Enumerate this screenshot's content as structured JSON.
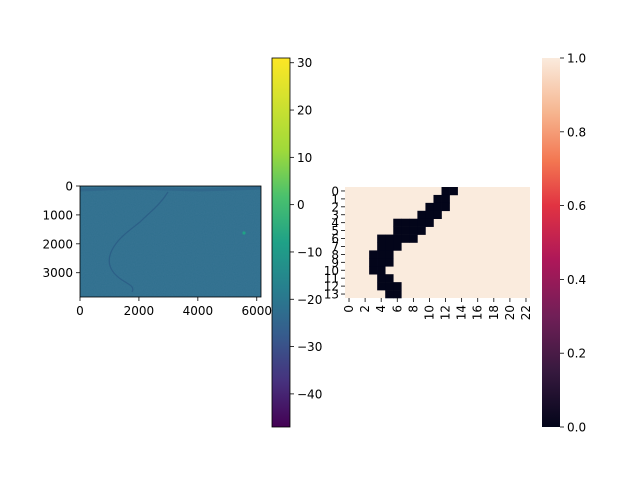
{
  "chart_data": [
    {
      "type": "heatmap",
      "title": "",
      "xlabel": "",
      "ylabel": "",
      "xlim": [
        0,
        6144
      ],
      "ylim": [
        3840,
        0
      ],
      "x_ticks": [
        "0",
        "2000",
        "4000",
        "6000"
      ],
      "y_ticks": [
        "0",
        "1000",
        "2000",
        "3000"
      ],
      "image_description_colors": {
        "background": "#2f6f8e",
        "river_dark": "#315c8a",
        "bright_spot": "#20a386"
      },
      "colorbar": {
        "colormap": "viridis",
        "range": [
          -47,
          31
        ],
        "ticks": [
          "30",
          "20",
          "10",
          "0",
          "−10",
          "−20",
          "−30",
          "−40"
        ]
      }
    },
    {
      "type": "heatmap",
      "title": "",
      "xlabel": "",
      "ylabel": "",
      "rows": 14,
      "cols": 23,
      "x_ticks": [
        "0",
        "2",
        "4",
        "6",
        "8",
        "10",
        "12",
        "14",
        "16",
        "18",
        "20",
        "22"
      ],
      "y_ticks": [
        "0",
        "1",
        "2",
        "3",
        "4",
        "5",
        "6",
        "7",
        "8",
        "9",
        "10",
        "11",
        "12",
        "13"
      ],
      "background_value": 1,
      "zero_cells": [
        [
          0,
          12
        ],
        [
          0,
          13
        ],
        [
          1,
          11
        ],
        [
          1,
          12
        ],
        [
          2,
          10
        ],
        [
          2,
          11
        ],
        [
          2,
          12
        ],
        [
          3,
          9
        ],
        [
          3,
          10
        ],
        [
          3,
          11
        ],
        [
          4,
          6
        ],
        [
          4,
          7
        ],
        [
          4,
          8
        ],
        [
          4,
          9
        ],
        [
          4,
          10
        ],
        [
          5,
          6
        ],
        [
          5,
          7
        ],
        [
          5,
          8
        ],
        [
          5,
          9
        ],
        [
          6,
          4
        ],
        [
          6,
          5
        ],
        [
          6,
          6
        ],
        [
          6,
          7
        ],
        [
          6,
          8
        ],
        [
          7,
          4
        ],
        [
          7,
          5
        ],
        [
          7,
          6
        ],
        [
          8,
          3
        ],
        [
          8,
          4
        ],
        [
          8,
          5
        ],
        [
          9,
          3
        ],
        [
          9,
          4
        ],
        [
          9,
          5
        ],
        [
          10,
          3
        ],
        [
          10,
          4
        ],
        [
          11,
          4
        ],
        [
          11,
          5
        ],
        [
          12,
          4
        ],
        [
          12,
          5
        ],
        [
          12,
          6
        ],
        [
          13,
          5
        ],
        [
          13,
          6
        ]
      ],
      "colors": {
        "one": "#faebdd",
        "zero": "#03051a"
      },
      "colorbar": {
        "colormap": "rocket",
        "range": [
          0,
          1
        ],
        "ticks": [
          "1.0",
          "0.8",
          "0.6",
          "0.4",
          "0.2",
          "0.0"
        ]
      }
    }
  ]
}
